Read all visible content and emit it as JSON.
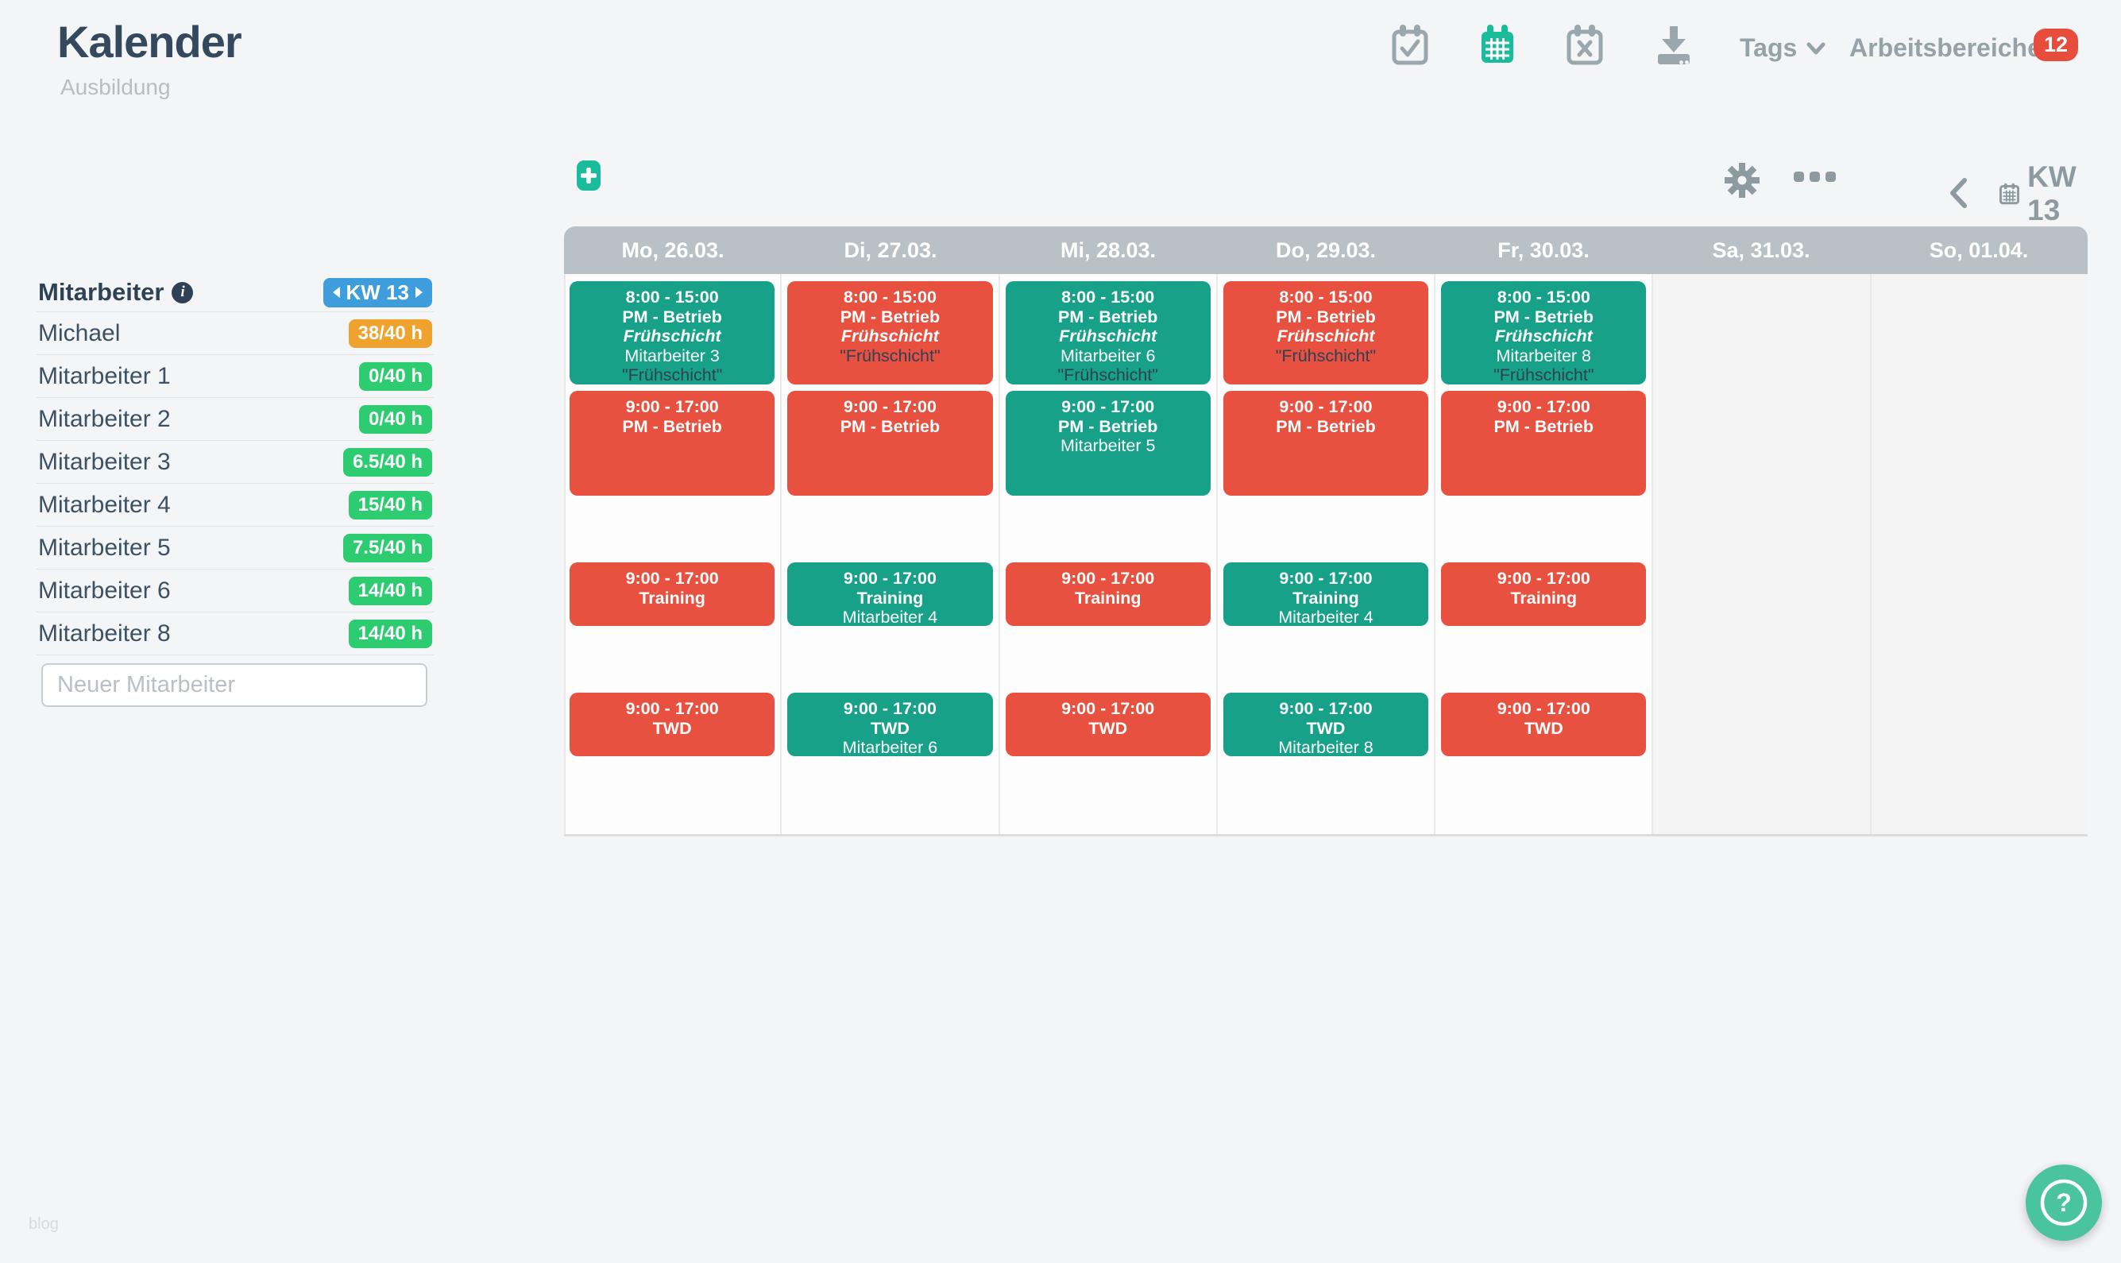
{
  "header": {
    "title": "Kalender",
    "subtitle": "Ausbildung",
    "tags_label": "Tags",
    "workspaces_label": "Arbeitsbereiche",
    "badge_count": "12",
    "icons": [
      "calendar-check-icon",
      "calendar-month-icon",
      "calendar-cancel-icon",
      "download-icon"
    ]
  },
  "toolbar": {
    "add_label": "+",
    "week_label": "KW 13",
    "icons": [
      "gear-icon",
      "more-options-icon",
      "chevron-left-icon",
      "calendar-icon",
      "chevron-right-icon"
    ]
  },
  "sidebar": {
    "header_label": "Mitarbeiter",
    "week_badge": "KW 13",
    "new_employee_placeholder": "Neuer Mitarbeiter",
    "employees": [
      {
        "name": "Michael",
        "hours": "38/40 h",
        "status": "orange"
      },
      {
        "name": "Mitarbeiter 1",
        "hours": "0/40 h",
        "status": "green"
      },
      {
        "name": "Mitarbeiter 2",
        "hours": "0/40 h",
        "status": "green"
      },
      {
        "name": "Mitarbeiter 3",
        "hours": "6.5/40 h",
        "status": "green"
      },
      {
        "name": "Mitarbeiter 4",
        "hours": "15/40 h",
        "status": "green"
      },
      {
        "name": "Mitarbeiter 5",
        "hours": "7.5/40 h",
        "status": "green"
      },
      {
        "name": "Mitarbeiter 6",
        "hours": "14/40 h",
        "status": "green"
      },
      {
        "name": "Mitarbeiter 8",
        "hours": "14/40 h",
        "status": "green"
      }
    ]
  },
  "calendar": {
    "days": [
      {
        "label": "Mo, 26.03.",
        "weekend": false,
        "events": [
          {
            "slot": 1,
            "color": "green",
            "time": "8:00 - 15:00",
            "title": "PM - Betrieb",
            "shift": "Frühschicht",
            "person": "Mitarbeiter 3",
            "note": "\"Frühschicht\""
          },
          {
            "slot": 2,
            "color": "red",
            "time": "9:00 - 17:00",
            "title": "PM - Betrieb"
          },
          {
            "slot": 3,
            "color": "red",
            "time": "9:00 - 17:00",
            "title": "Training"
          },
          {
            "slot": 4,
            "color": "red",
            "time": "9:00 - 17:00",
            "title": "TWD"
          }
        ]
      },
      {
        "label": "Di, 27.03.",
        "weekend": false,
        "events": [
          {
            "slot": 1,
            "color": "red",
            "time": "8:00 - 15:00",
            "title": "PM - Betrieb",
            "shift": "Frühschicht",
            "note": "\"Frühschicht\""
          },
          {
            "slot": 2,
            "color": "red",
            "time": "9:00 - 17:00",
            "title": "PM - Betrieb"
          },
          {
            "slot": 3,
            "color": "green",
            "time": "9:00 - 17:00",
            "title": "Training",
            "person": "Mitarbeiter 4"
          },
          {
            "slot": 4,
            "color": "green",
            "time": "9:00 - 17:00",
            "title": "TWD",
            "person": "Mitarbeiter 6"
          }
        ]
      },
      {
        "label": "Mi, 28.03.",
        "weekend": false,
        "events": [
          {
            "slot": 1,
            "color": "green",
            "time": "8:00 - 15:00",
            "title": "PM - Betrieb",
            "shift": "Frühschicht",
            "person": "Mitarbeiter 6",
            "note": "\"Frühschicht\""
          },
          {
            "slot": 2,
            "color": "green",
            "time": "9:00 - 17:00",
            "title": "PM - Betrieb",
            "person": "Mitarbeiter 5"
          },
          {
            "slot": 3,
            "color": "red",
            "time": "9:00 - 17:00",
            "title": "Training"
          },
          {
            "slot": 4,
            "color": "red",
            "time": "9:00 - 17:00",
            "title": "TWD"
          }
        ]
      },
      {
        "label": "Do, 29.03.",
        "weekend": false,
        "events": [
          {
            "slot": 1,
            "color": "red",
            "time": "8:00 - 15:00",
            "title": "PM - Betrieb",
            "shift": "Frühschicht",
            "note": "\"Frühschicht\""
          },
          {
            "slot": 2,
            "color": "red",
            "time": "9:00 - 17:00",
            "title": "PM - Betrieb"
          },
          {
            "slot": 3,
            "color": "green",
            "time": "9:00 - 17:00",
            "title": "Training",
            "person": "Mitarbeiter 4"
          },
          {
            "slot": 4,
            "color": "green",
            "time": "9:00 - 17:00",
            "title": "TWD",
            "person": "Mitarbeiter 8"
          }
        ]
      },
      {
        "label": "Fr, 30.03.",
        "weekend": false,
        "events": [
          {
            "slot": 1,
            "color": "green",
            "time": "8:00 - 15:00",
            "title": "PM - Betrieb",
            "shift": "Frühschicht",
            "person": "Mitarbeiter 8",
            "note": "\"Frühschicht\""
          },
          {
            "slot": 2,
            "color": "red",
            "time": "9:00 - 17:00",
            "title": "PM - Betrieb"
          },
          {
            "slot": 3,
            "color": "red",
            "time": "9:00 - 17:00",
            "title": "Training"
          },
          {
            "slot": 4,
            "color": "red",
            "time": "9:00 - 17:00",
            "title": "TWD"
          }
        ]
      },
      {
        "label": "Sa, 31.03.",
        "weekend": true,
        "events": []
      },
      {
        "label": "So, 01.04.",
        "weekend": true,
        "events": []
      }
    ]
  },
  "footer": {
    "blog_label": "blog",
    "help_label": "?"
  },
  "colors": {
    "accent_teal": "#1abc9c",
    "event_green": "#17a189",
    "event_red": "#e8503f",
    "badge_green": "#2ecc71",
    "badge_orange": "#f0a22e",
    "badge_blue": "#3e9edd",
    "badge_red": "#e74c3c",
    "header_band": "#b9c0c6",
    "dark_text": "#2f4154",
    "help_green": "#4ac39f"
  }
}
